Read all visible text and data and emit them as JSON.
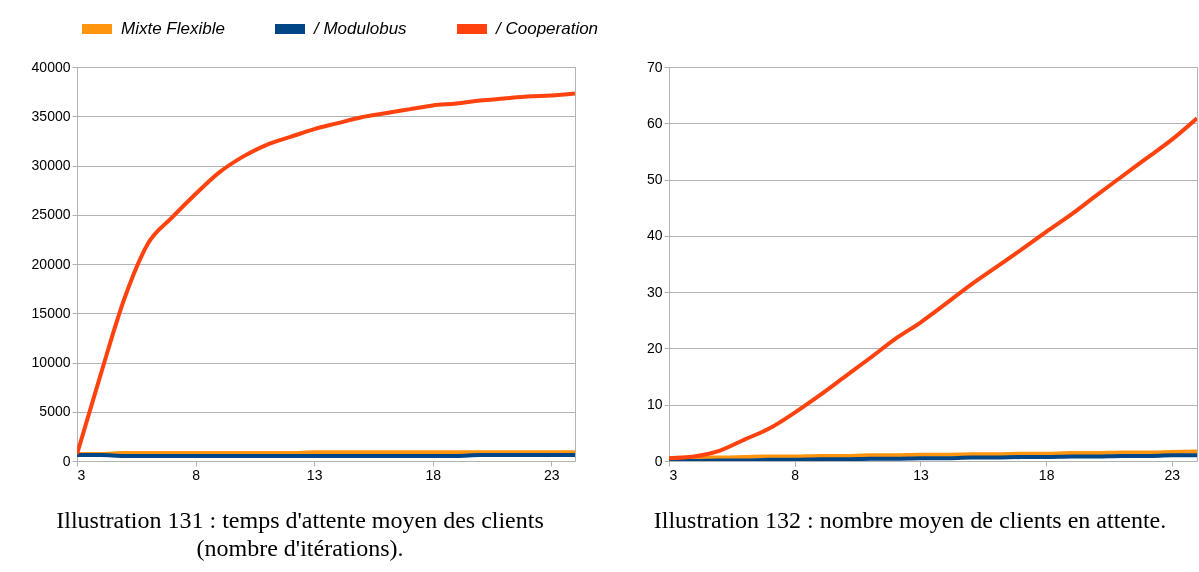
{
  "chart_data": [
    {
      "type": "line",
      "x": [
        3,
        4,
        5,
        6,
        7,
        8,
        9,
        10,
        11,
        12,
        13,
        14,
        15,
        16,
        17,
        18,
        19,
        20,
        21,
        22,
        23,
        24
      ],
      "xlim": [
        3,
        24
      ],
      "xticks": [
        3,
        8,
        13,
        18,
        23
      ],
      "ylim": [
        0,
        40000
      ],
      "yticks": [
        0,
        5000,
        10000,
        15000,
        20000,
        25000,
        30000,
        35000,
        40000
      ],
      "grid": "y",
      "legend": "top",
      "annotations": [
        "Illustration 131 : temps d'attente moyen des clients (nombre d'itérations)."
      ],
      "series": [
        {
          "name": "Mixte Flexible",
          "color": "#ff950e",
          "values": [
            700,
            700,
            800,
            800,
            800,
            800,
            800,
            800,
            800,
            800,
            900,
            900,
            900,
            900,
            900,
            900,
            900,
            900,
            900,
            900,
            900,
            900
          ]
        },
        {
          "name": "/ Modulobus",
          "color": "#004586",
          "values": [
            600,
            600,
            500,
            500,
            500,
            500,
            500,
            500,
            500,
            500,
            500,
            500,
            500,
            500,
            500,
            500,
            500,
            600,
            600,
            600,
            600,
            600
          ]
        },
        {
          "name": "/ Cooperation",
          "color": "#ff420e",
          "values": [
            700,
            8800,
            16500,
            22100,
            24700,
            27100,
            29300,
            30900,
            32100,
            32900,
            33700,
            34300,
            34900,
            35300,
            35700,
            36100,
            36300,
            36600,
            36800,
            37000,
            37100,
            37300
          ]
        }
      ]
    },
    {
      "type": "line",
      "x": [
        3,
        4,
        5,
        6,
        7,
        8,
        9,
        10,
        11,
        12,
        13,
        14,
        15,
        16,
        17,
        18,
        19,
        20,
        21,
        22,
        23,
        24
      ],
      "xlim": [
        3,
        24
      ],
      "xticks": [
        3,
        8,
        13,
        18,
        23
      ],
      "ylim": [
        0,
        70
      ],
      "yticks": [
        0,
        10,
        20,
        30,
        40,
        50,
        60,
        70
      ],
      "grid": "y",
      "annotations": [
        "Illustration 132 : nombre moyen de clients en attente."
      ],
      "series": [
        {
          "color": "#ff950e",
          "values": [
            0.5,
            0.6,
            0.6,
            0.7,
            0.8,
            0.8,
            0.9,
            0.9,
            1,
            1,
            1.1,
            1.1,
            1.2,
            1.2,
            1.3,
            1.3,
            1.4,
            1.4,
            1.5,
            1.5,
            1.6,
            1.7
          ]
        },
        {
          "color": "#004586",
          "values": [
            0,
            0,
            0.1,
            0.1,
            0.2,
            0.2,
            0.3,
            0.3,
            0.4,
            0.4,
            0.5,
            0.5,
            0.6,
            0.6,
            0.7,
            0.7,
            0.8,
            0.8,
            0.9,
            0.9,
            1,
            1
          ]
        },
        {
          "color": "#ff420e",
          "values": [
            0.5,
            0.8,
            1.8,
            3.8,
            5.8,
            8.6,
            11.7,
            15,
            18.3,
            21.7,
            24.6,
            27.9,
            31.3,
            34.4,
            37.5,
            40.7,
            43.8,
            47.2,
            50.5,
            53.8,
            57.1,
            60.9
          ]
        }
      ]
    }
  ]
}
